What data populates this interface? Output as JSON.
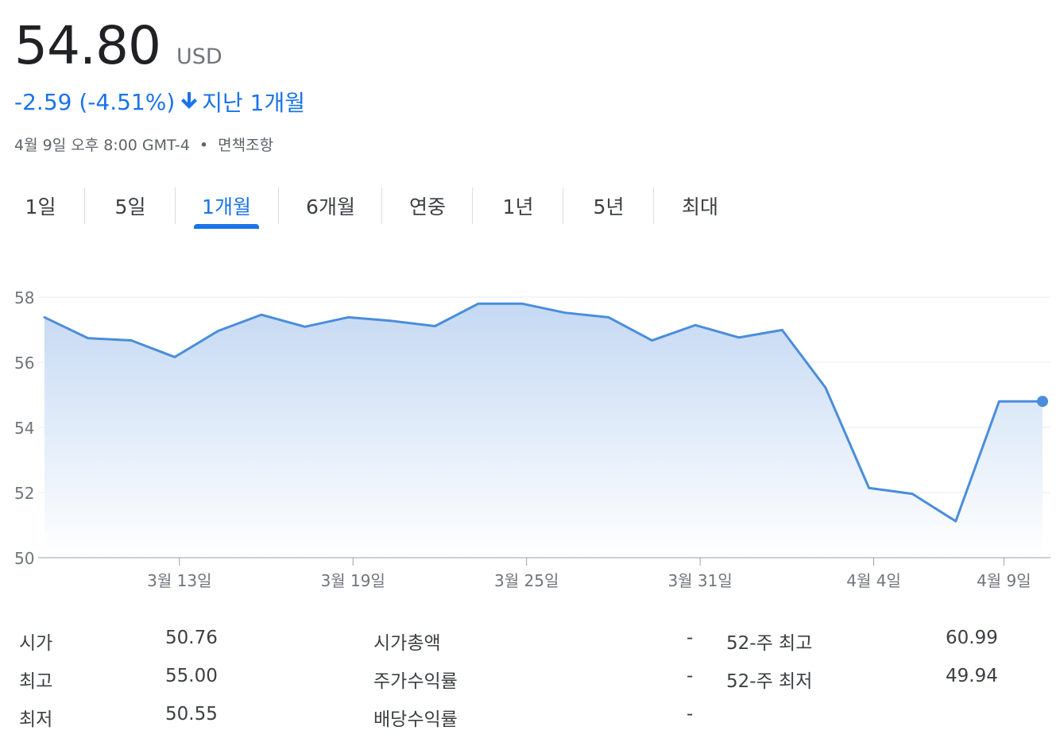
{
  "quote": {
    "price": "54.80",
    "currency": "USD",
    "change": "-2.59 (-4.51%)",
    "period": "지난 1개월",
    "timestamp": "4월 9일 오후 8:00 GMT-4",
    "disclaimer": "면책조항"
  },
  "tabs": [
    {
      "label": "1일"
    },
    {
      "label": "5일"
    },
    {
      "label": "1개월",
      "active": true
    },
    {
      "label": "6개월"
    },
    {
      "label": "연중"
    },
    {
      "label": "1년"
    },
    {
      "label": "5년"
    },
    {
      "label": "최대"
    }
  ],
  "colors": {
    "accent": "#1a73e8",
    "line": "#4a8ddc",
    "text": "#202124",
    "muted": "#70757a"
  },
  "icons": {
    "change_direction": "arrow-down-icon"
  },
  "chart_data": {
    "type": "area",
    "title": "",
    "xlabel": "",
    "ylabel": "",
    "ylim": [
      50,
      58
    ],
    "y_ticks": [
      "58",
      "56",
      "54",
      "52",
      "50"
    ],
    "x_tick_labels": [
      "3월 13일",
      "3월 19일",
      "3월 25일",
      "3월 31일",
      "4월 4일",
      "4월 9일"
    ],
    "series": [
      {
        "values": [
          57.38,
          56.74,
          56.67,
          56.16,
          56.96,
          57.46,
          57.09,
          57.38,
          57.27,
          57.11,
          57.8,
          57.8,
          57.52,
          57.38,
          56.67,
          57.14,
          56.76,
          56.99,
          55.22,
          52.14,
          51.96,
          51.12,
          54.8,
          54.8
        ]
      }
    ],
    "grid": true,
    "last_point_marker": true
  },
  "stats": {
    "rows": [
      {
        "l1": "시가",
        "v1": "50.76",
        "l2": "시가총액",
        "v2": "-",
        "l3": "52-주 최고",
        "v3": "60.99"
      },
      {
        "l1": "최고",
        "v1": "55.00",
        "l2": "주가수익률",
        "v2": "-",
        "l3": "52-주 최저",
        "v3": "49.94"
      },
      {
        "l1": "최저",
        "v1": "50.55",
        "l2": "배당수익률",
        "v2": "-",
        "l3": "",
        "v3": ""
      }
    ]
  }
}
